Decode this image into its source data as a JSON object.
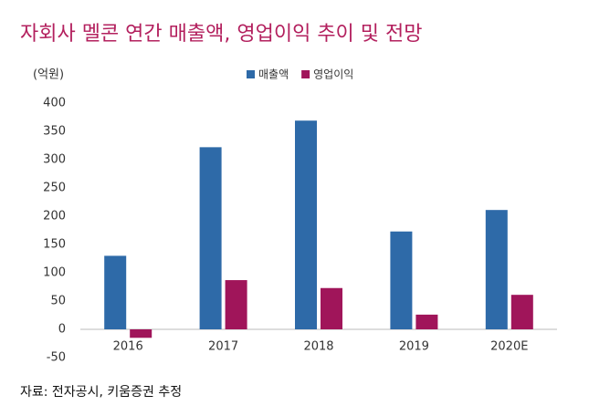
{
  "chart_data": {
    "type": "bar",
    "title": "자회사 멜콘 연간 매출액, 영업이익 추이 및 전망",
    "y_label": "(억원)",
    "source": "자료: 전자공시, 키움증권 추정",
    "categories": [
      "2016",
      "2017",
      "2018",
      "2019",
      "2020E"
    ],
    "series": [
      {
        "name": "매출액",
        "color": "#2e6aa8",
        "values": [
          130,
          322,
          369,
          173,
          211
        ]
      },
      {
        "name": "영업이익",
        "color": "#a0155a",
        "values": [
          -15,
          87,
          73,
          26,
          61
        ]
      }
    ],
    "ylim": [
      -50,
      400
    ],
    "yticks": [
      -50,
      0,
      50,
      100,
      150,
      200,
      250,
      300,
      350,
      400
    ],
    "grid": false,
    "legend": "top"
  }
}
